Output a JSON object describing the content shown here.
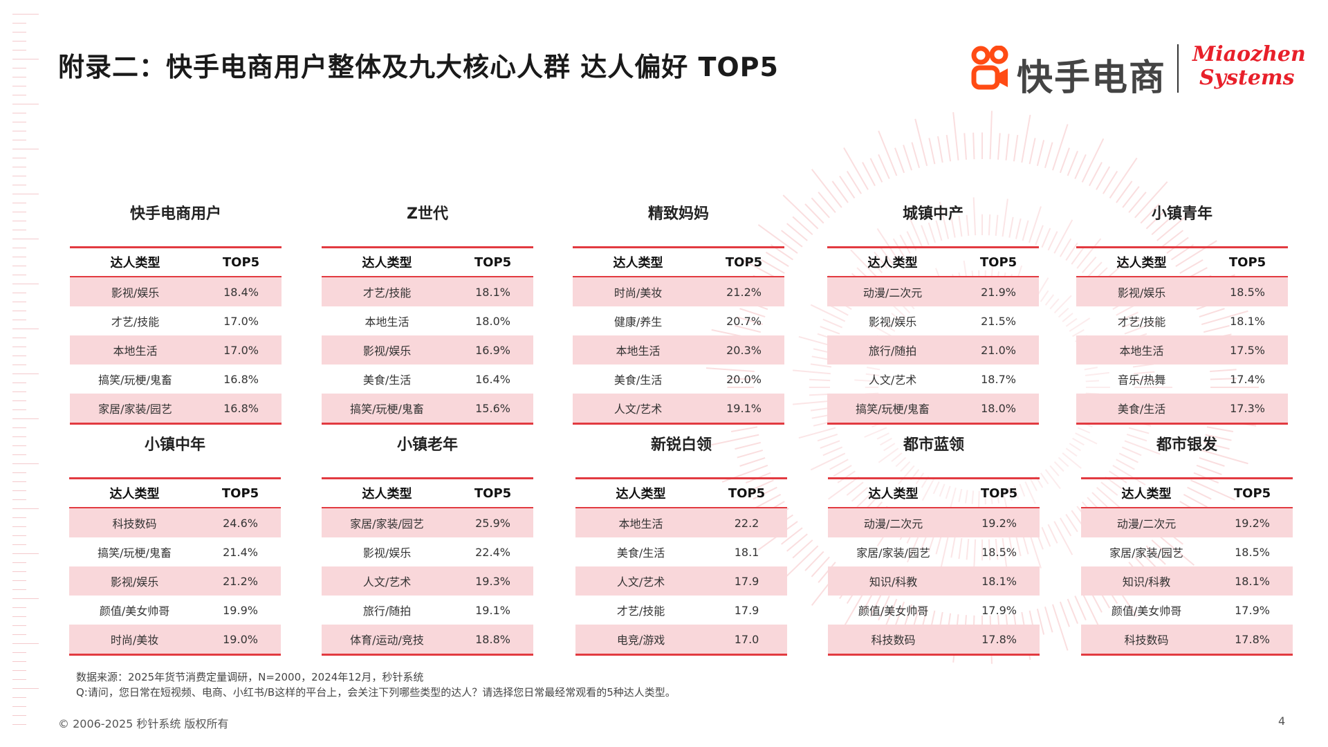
{
  "title": "附录二：快手电商用户整体及九大核心人群 达人偏好 TOP5",
  "brand": {
    "cn": "快手电商",
    "en_line1": "Miaozhen",
    "en_line2": "Systems",
    "logo_icon": "kuaishou-logo-icon"
  },
  "table_header": {
    "col1": "达人类型",
    "col2": "TOP5"
  },
  "panels": [
    {
      "title": "快手电商用户",
      "rows": [
        {
          "type": "影视/娱乐",
          "val": "18.4%"
        },
        {
          "type": "才艺/技能",
          "val": "17.0%"
        },
        {
          "type": "本地生活",
          "val": "17.0%"
        },
        {
          "type": "搞笑/玩梗/鬼畜",
          "val": "16.8%"
        },
        {
          "type": "家居/家装/园艺",
          "val": "16.8%"
        }
      ]
    },
    {
      "title": "Z世代",
      "rows": [
        {
          "type": "才艺/技能",
          "val": "18.1%"
        },
        {
          "type": "本地生活",
          "val": "18.0%"
        },
        {
          "type": "影视/娱乐",
          "val": "16.9%"
        },
        {
          "type": "美食/生活",
          "val": "16.4%"
        },
        {
          "type": "搞笑/玩梗/鬼畜",
          "val": "15.6%"
        }
      ]
    },
    {
      "title": "精致妈妈",
      "rows": [
        {
          "type": "时尚/美妆",
          "val": "21.2%"
        },
        {
          "type": "健康/养生",
          "val": "20.7%"
        },
        {
          "type": "本地生活",
          "val": "20.3%"
        },
        {
          "type": "美食/生活",
          "val": "20.0%"
        },
        {
          "type": "人文/艺术",
          "val": "19.1%"
        }
      ]
    },
    {
      "title": "城镇中产",
      "rows": [
        {
          "type": "动漫/二次元",
          "val": "21.9%"
        },
        {
          "type": "影视/娱乐",
          "val": "21.5%"
        },
        {
          "type": "旅行/随拍",
          "val": "21.0%"
        },
        {
          "type": "人文/艺术",
          "val": "18.7%"
        },
        {
          "type": "搞笑/玩梗/鬼畜",
          "val": "18.0%"
        }
      ]
    },
    {
      "title": "小镇青年",
      "rows": [
        {
          "type": "影视/娱乐",
          "val": "18.5%"
        },
        {
          "type": "才艺/技能",
          "val": "18.1%"
        },
        {
          "type": "本地生活",
          "val": "17.5%"
        },
        {
          "type": "音乐/热舞",
          "val": "17.4%"
        },
        {
          "type": "美食/生活",
          "val": "17.3%"
        }
      ]
    },
    {
      "title": "小镇中年",
      "rows": [
        {
          "type": "科技数码",
          "val": "24.6%"
        },
        {
          "type": "搞笑/玩梗/鬼畜",
          "val": "21.4%"
        },
        {
          "type": "影视/娱乐",
          "val": "21.2%"
        },
        {
          "type": "颜值/美女帅哥",
          "val": "19.9%"
        },
        {
          "type": "时尚/美妆",
          "val": "19.0%"
        }
      ]
    },
    {
      "title": "小镇老年",
      "rows": [
        {
          "type": "家居/家装/园艺",
          "val": "25.9%"
        },
        {
          "type": "影视/娱乐",
          "val": "22.4%"
        },
        {
          "type": "人文/艺术",
          "val": "19.3%"
        },
        {
          "type": "旅行/随拍",
          "val": "19.1%"
        },
        {
          "type": "体育/运动/竞技",
          "val": "18.8%"
        }
      ]
    },
    {
      "title": "新锐白领",
      "rows": [
        {
          "type": "本地生活",
          "val": "22.2"
        },
        {
          "type": "美食/生活",
          "val": "18.1"
        },
        {
          "type": "人文/艺术",
          "val": "17.9"
        },
        {
          "type": "才艺/技能",
          "val": "17.9"
        },
        {
          "type": "电竞/游戏",
          "val": "17.0"
        }
      ]
    },
    {
      "title": "都市蓝领",
      "rows": [
        {
          "type": "动漫/二次元",
          "val": "19.2%"
        },
        {
          "type": "家居/家装/园艺",
          "val": "18.5%"
        },
        {
          "type": "知识/科教",
          "val": "18.1%"
        },
        {
          "type": "颜值/美女帅哥",
          "val": "17.9%"
        },
        {
          "type": "科技数码",
          "val": "17.8%"
        }
      ]
    },
    {
      "title": "都市银发",
      "rows": [
        {
          "type": "动漫/二次元",
          "val": "19.2%"
        },
        {
          "type": "家居/家装/园艺",
          "val": "18.5%"
        },
        {
          "type": "知识/科教",
          "val": "18.1%"
        },
        {
          "type": "颜值/美女帅哥",
          "val": "17.9%"
        },
        {
          "type": "科技数码",
          "val": "17.8%"
        }
      ]
    }
  ],
  "source_note": "数据来源：2025年货节消费定量调研，N=2000，2024年12月，秒针系统",
  "question_note": "Q:请问，您日常在短视频、电商、小红书/B这样的平台上，会关注下列哪些类型的达人？请选择您日常最经常观看的5种达人类型。",
  "footer": "© 2006-2025 秒针系统 版权所有",
  "page_number": "4",
  "colors": {
    "accent": "#e23a40",
    "row_highlight": "#f9d7da",
    "brand_red": "#e8202a"
  }
}
